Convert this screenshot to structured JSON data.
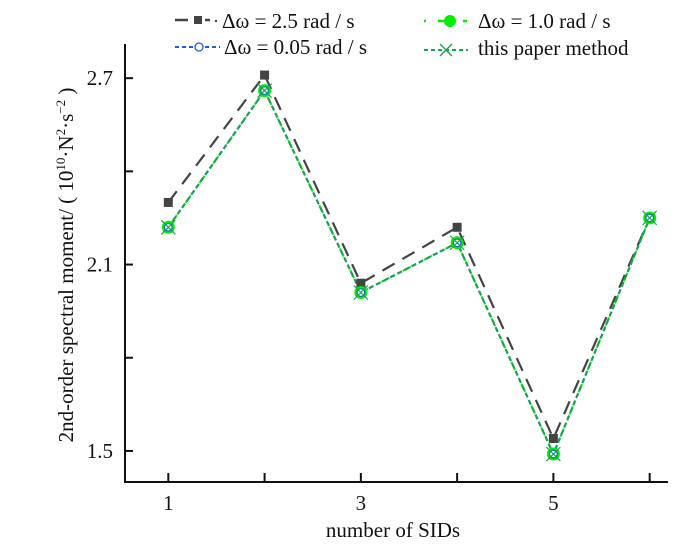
{
  "chart_data": {
    "type": "line",
    "title": "",
    "xlabel": "number of SIDs",
    "ylabel": "2nd-order spectral moment/ ( 10^10·N^2·s^-2 )",
    "ylabel_parts": {
      "main": "2nd-order spectral moment/ ( 10",
      "exp1": "10",
      "mid": "·N",
      "exp2": "2",
      "mid2": "·s",
      "exp3": "−2",
      "end": " )"
    },
    "x": [
      1,
      2,
      3,
      4,
      5,
      6
    ],
    "x_tick_values": [
      1,
      2,
      3,
      4,
      5,
      6
    ],
    "x_tick_labels": [
      "1",
      "",
      "3",
      "",
      "5",
      ""
    ],
    "y_tick_values": [
      1.5,
      1.8,
      2.1,
      2.4,
      2.7
    ],
    "y_tick_labels": [
      "1.5",
      "",
      "2.1",
      "",
      "2.7"
    ],
    "xlim": [
      0.55,
      6.18
    ],
    "ylim": [
      1.4,
      2.81
    ],
    "grid": false,
    "legend_position": "top",
    "series": [
      {
        "name": "Δω = 2.5 rad / s",
        "color": "#444444",
        "marker": "square",
        "dash": "long",
        "values": [
          2.3,
          2.71,
          2.04,
          2.22,
          1.54,
          2.25
        ]
      },
      {
        "name": "Δω = 1.0 rad / s",
        "color": "#00ee00",
        "marker": "filled-circle",
        "dash": "dot",
        "values": [
          2.22,
          2.66,
          2.01,
          2.17,
          1.49,
          2.25
        ]
      },
      {
        "name": "Δω = 0.05 rad / s",
        "color": "#1f5fd6",
        "marker": "open-circle",
        "dash": "short",
        "values": [
          2.22,
          2.66,
          2.01,
          2.17,
          1.49,
          2.25
        ]
      },
      {
        "name": "this paper method",
        "color": "#1aa34a",
        "marker": "x",
        "dash": "short",
        "values": [
          2.22,
          2.66,
          2.01,
          2.17,
          1.49,
          2.25
        ]
      }
    ],
    "legend": [
      {
        "label": "Δω = 2.5 rad / s",
        "series": 0
      },
      {
        "label": "Δω = 1.0 rad / s",
        "series": 1
      },
      {
        "label": "Δω = 0.05 rad / s",
        "series": 2
      },
      {
        "label": "this paper method",
        "series": 3
      }
    ]
  }
}
